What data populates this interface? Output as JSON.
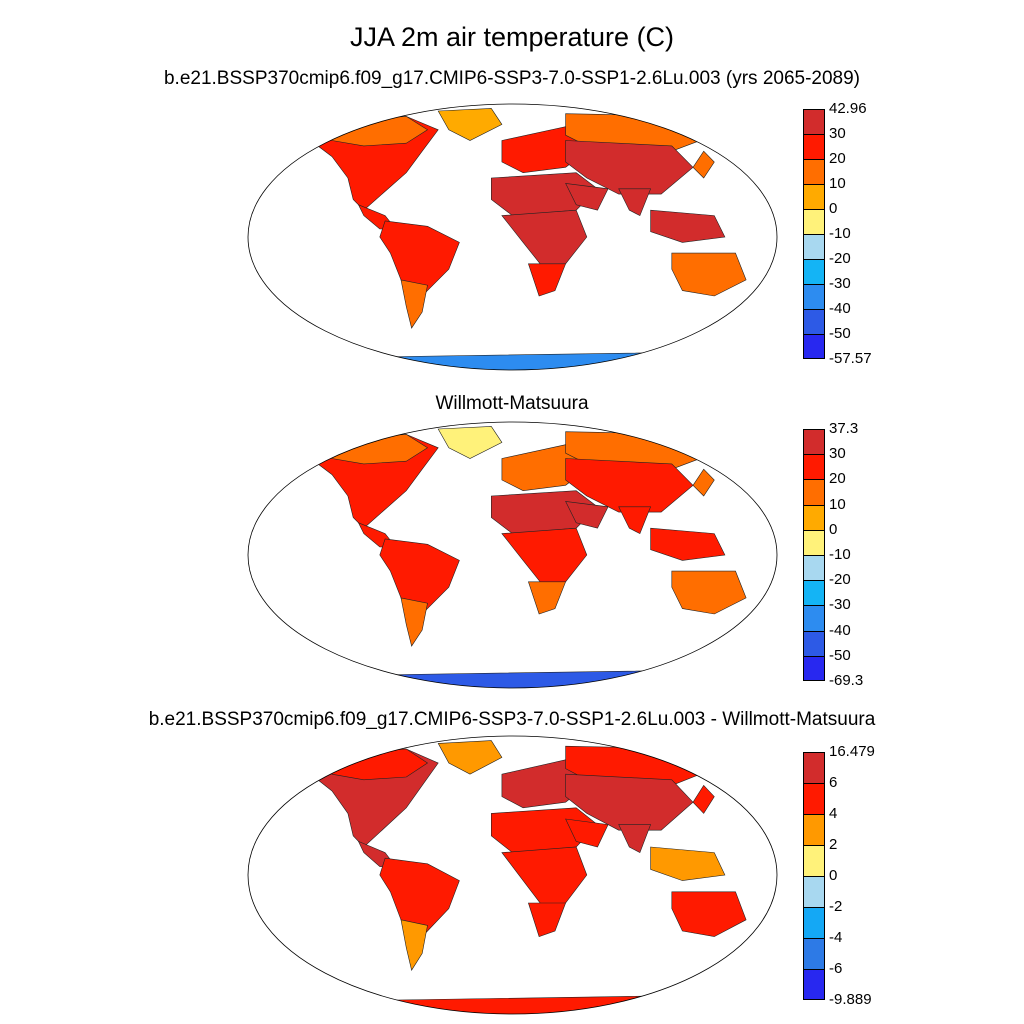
{
  "title": "JJA 2m air temperature (C)",
  "panels": [
    {
      "subtitle": "b.e21.BSSP370cmip6.f09_g17.CMIP6-SSP3-7.0-SSP1-2.6Lu.003 (yrs 2065-2089)",
      "colorbar": {
        "labels": [
          "42.96",
          "30",
          "20",
          "10",
          "0",
          "-10",
          "-20",
          "-30",
          "-40",
          "-50",
          "-57.57"
        ],
        "colors": [
          "#d22c2c",
          "#ff1a00",
          "#ff6e00",
          "#ffaa00",
          "#fff27a",
          "#a8d8f0",
          "#14b4f5",
          "#2d8cf0",
          "#2d5ae6",
          "#2828f0"
        ]
      }
    },
    {
      "subtitle": "Willmott-Matsuura",
      "colorbar": {
        "labels": [
          "37.3",
          "30",
          "20",
          "10",
          "0",
          "-10",
          "-20",
          "-30",
          "-40",
          "-50",
          "-69.3"
        ],
        "colors": [
          "#d22c2c",
          "#ff1a00",
          "#ff6e00",
          "#ffaa00",
          "#fff27a",
          "#a8d8f0",
          "#14b4f5",
          "#2d8cf0",
          "#2d5ae6",
          "#2828f0"
        ]
      }
    },
    {
      "subtitle": "b.e21.BSSP370cmip6.f09_g17.CMIP6-SSP3-7.0-SSP1-2.6Lu.003 - Willmott-Matsuura",
      "colorbar": {
        "labels": [
          "16.479",
          "6",
          "4",
          "2",
          "0",
          "-2",
          "-4",
          "-6",
          "-9.889"
        ],
        "colors": [
          "#d22c2c",
          "#ff1a00",
          "#ff9900",
          "#fff27a",
          "#a8d8f0",
          "#14a8f5",
          "#2d7ae6",
          "#2828f0"
        ]
      }
    }
  ],
  "chart_data": [
    {
      "type": "heatmap",
      "title": "JJA 2m air temperature (C)",
      "subtitle": "b.e21.BSSP370cmip6.f09_g17.CMIP6-SSP3-7.0-SSP1-2.6Lu.003 (yrs 2065-2089)",
      "variable": "2m air temperature",
      "units": "C",
      "range": [
        -57.57,
        42.96
      ],
      "levels": [
        -50,
        -40,
        -30,
        -20,
        -10,
        0,
        10,
        20,
        30
      ],
      "regions": {
        "north_america": 20,
        "canada_north": 10,
        "greenland": 0,
        "south_america": 20,
        "patagonia": 10,
        "europe": 20,
        "siberia": 10,
        "central_asia": 30,
        "sahara": 30,
        "africa_tropics": 30,
        "southern_africa": 20,
        "australia": 10,
        "maritime_asia": 30,
        "antarctica": -40
      }
    },
    {
      "type": "heatmap",
      "title": "Willmott-Matsuura",
      "variable": "2m air temperature",
      "units": "C",
      "range": [
        -69.3,
        37.3
      ],
      "levels": [
        -50,
        -40,
        -30,
        -20,
        -10,
        0,
        10,
        20,
        30
      ],
      "regions": {
        "north_america": 20,
        "canada_north": 10,
        "greenland": -10,
        "south_america": 20,
        "patagonia": 10,
        "europe": 10,
        "siberia": 10,
        "central_asia": 20,
        "sahara": 30,
        "africa_tropics": 20,
        "southern_africa": 10,
        "australia": 10,
        "maritime_asia": 20,
        "antarctica": -50
      }
    },
    {
      "type": "heatmap",
      "title": "b.e21.BSSP370cmip6.f09_g17.CMIP6-SSP3-7.0-SSP1-2.6Lu.003 - Willmott-Matsuura",
      "variable": "2m air temperature difference",
      "units": "C",
      "range": [
        -9.889,
        16.479
      ],
      "levels": [
        -6,
        -4,
        -2,
        0,
        2,
        4,
        6
      ],
      "regions": {
        "north_america": 6,
        "canada_north": 4,
        "greenland": 2,
        "south_america": 4,
        "patagonia": 2,
        "europe": 6,
        "siberia": 4,
        "central_asia": 6,
        "sahara": 4,
        "africa_tropics": 4,
        "southern_africa": 4,
        "australia": 4,
        "maritime_asia": 2,
        "antarctica": 4
      }
    }
  ]
}
